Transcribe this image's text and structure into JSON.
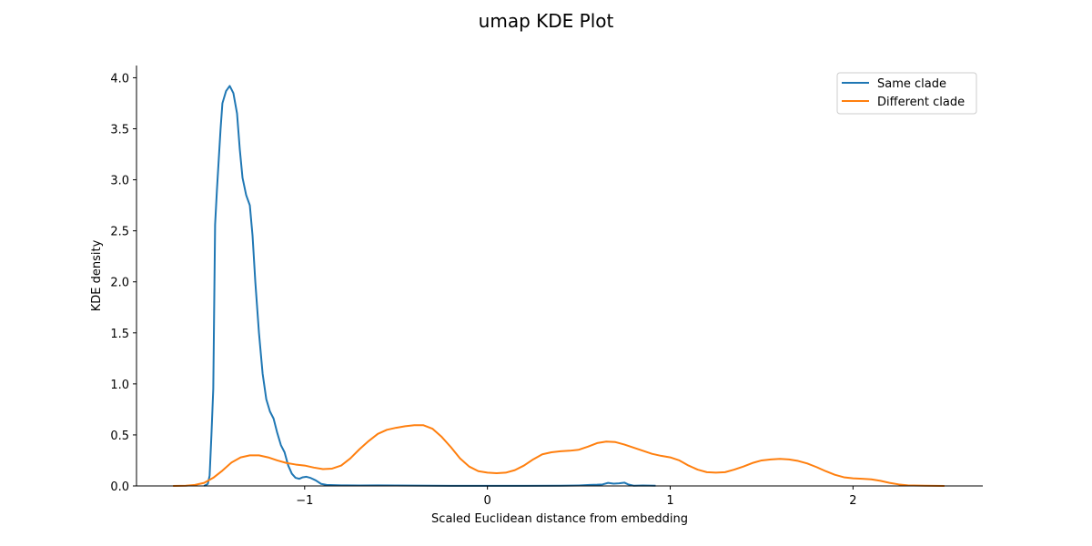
{
  "chart_data": {
    "type": "line",
    "title": "umap KDE Plot",
    "xlabel": "Scaled Euclidean distance from embedding",
    "ylabel": "KDE density",
    "xlim": [
      -1.92,
      2.71
    ],
    "ylim": [
      0,
      4.12
    ],
    "xticks": [
      {
        "value": -1,
        "label": "−1"
      },
      {
        "value": 0,
        "label": "0"
      },
      {
        "value": 1,
        "label": "1"
      },
      {
        "value": 2,
        "label": "2"
      }
    ],
    "yticks": [
      {
        "value": 0,
        "label": "0.0"
      },
      {
        "value": 0.5,
        "label": "0.5"
      },
      {
        "value": 1,
        "label": "1.0"
      },
      {
        "value": 1.5,
        "label": "1.5"
      },
      {
        "value": 2,
        "label": "2.0"
      },
      {
        "value": 2.5,
        "label": "2.5"
      },
      {
        "value": 3,
        "label": "3.0"
      },
      {
        "value": 3.5,
        "label": "3.5"
      },
      {
        "value": 4,
        "label": "4.0"
      }
    ],
    "grid": false,
    "legend_position": "top-right",
    "series": [
      {
        "name": "Same clade",
        "color": "#1f77b4",
        "points": [
          [
            -1.55,
            0
          ],
          [
            -1.53,
            0.02
          ],
          [
            -1.52,
            0.1
          ],
          [
            -1.51,
            0.5
          ],
          [
            -1.5,
            0.95
          ],
          [
            -1.49,
            2.56
          ],
          [
            -1.48,
            2.9
          ],
          [
            -1.47,
            3.2
          ],
          [
            -1.46,
            3.5
          ],
          [
            -1.45,
            3.75
          ],
          [
            -1.43,
            3.87
          ],
          [
            -1.41,
            3.92
          ],
          [
            -1.39,
            3.85
          ],
          [
            -1.37,
            3.65
          ],
          [
            -1.355,
            3.3
          ],
          [
            -1.34,
            3.02
          ],
          [
            -1.32,
            2.85
          ],
          [
            -1.3,
            2.75
          ],
          [
            -1.285,
            2.45
          ],
          [
            -1.27,
            2.0
          ],
          [
            -1.25,
            1.5
          ],
          [
            -1.23,
            1.1
          ],
          [
            -1.21,
            0.85
          ],
          [
            -1.19,
            0.73
          ],
          [
            -1.17,
            0.66
          ],
          [
            -1.15,
            0.52
          ],
          [
            -1.13,
            0.4
          ],
          [
            -1.11,
            0.33
          ],
          [
            -1.09,
            0.2
          ],
          [
            -1.07,
            0.12
          ],
          [
            -1.05,
            0.08
          ],
          [
            -1.03,
            0.07
          ],
          [
            -1.01,
            0.085
          ],
          [
            -0.99,
            0.09
          ],
          [
            -0.97,
            0.08
          ],
          [
            -0.94,
            0.055
          ],
          [
            -0.91,
            0.02
          ],
          [
            -0.88,
            0.01
          ],
          [
            -0.84,
            0.008
          ],
          [
            -0.8,
            0.006
          ],
          [
            -0.7,
            0.004
          ],
          [
            -0.6,
            0.006
          ],
          [
            -0.5,
            0.004
          ],
          [
            -0.4,
            0.003
          ],
          [
            -0.3,
            0.002
          ],
          [
            -0.2,
            0.001
          ],
          [
            0,
            0.001
          ],
          [
            0.2,
            0.001
          ],
          [
            0.4,
            0.002
          ],
          [
            0.5,
            0.004
          ],
          [
            0.56,
            0.01
          ],
          [
            0.6,
            0.012
          ],
          [
            0.63,
            0.015
          ],
          [
            0.66,
            0.03
          ],
          [
            0.69,
            0.022
          ],
          [
            0.72,
            0.026
          ],
          [
            0.75,
            0.032
          ],
          [
            0.77,
            0.015
          ],
          [
            0.8,
            0.002
          ],
          [
            0.85,
            0.004
          ],
          [
            0.92,
            0.002
          ]
        ]
      },
      {
        "name": "Different clade",
        "color": "#ff7f0e",
        "points": [
          [
            -1.72,
            0
          ],
          [
            -1.65,
            0.002
          ],
          [
            -1.6,
            0.01
          ],
          [
            -1.55,
            0.03
          ],
          [
            -1.5,
            0.08
          ],
          [
            -1.45,
            0.15
          ],
          [
            -1.4,
            0.23
          ],
          [
            -1.35,
            0.28
          ],
          [
            -1.3,
            0.3
          ],
          [
            -1.25,
            0.3
          ],
          [
            -1.2,
            0.28
          ],
          [
            -1.15,
            0.25
          ],
          [
            -1.1,
            0.225
          ],
          [
            -1.05,
            0.21
          ],
          [
            -1.0,
            0.2
          ],
          [
            -0.95,
            0.18
          ],
          [
            -0.9,
            0.165
          ],
          [
            -0.85,
            0.17
          ],
          [
            -0.8,
            0.2
          ],
          [
            -0.75,
            0.27
          ],
          [
            -0.7,
            0.36
          ],
          [
            -0.65,
            0.44
          ],
          [
            -0.6,
            0.51
          ],
          [
            -0.55,
            0.55
          ],
          [
            -0.5,
            0.57
          ],
          [
            -0.45,
            0.585
          ],
          [
            -0.4,
            0.595
          ],
          [
            -0.35,
            0.595
          ],
          [
            -0.3,
            0.56
          ],
          [
            -0.25,
            0.48
          ],
          [
            -0.2,
            0.38
          ],
          [
            -0.15,
            0.27
          ],
          [
            -0.1,
            0.19
          ],
          [
            -0.05,
            0.145
          ],
          [
            0.0,
            0.13
          ],
          [
            0.05,
            0.125
          ],
          [
            0.1,
            0.13
          ],
          [
            0.15,
            0.155
          ],
          [
            0.2,
            0.2
          ],
          [
            0.25,
            0.26
          ],
          [
            0.3,
            0.31
          ],
          [
            0.35,
            0.33
          ],
          [
            0.4,
            0.34
          ],
          [
            0.45,
            0.345
          ],
          [
            0.5,
            0.355
          ],
          [
            0.55,
            0.385
          ],
          [
            0.6,
            0.42
          ],
          [
            0.65,
            0.435
          ],
          [
            0.7,
            0.43
          ],
          [
            0.75,
            0.405
          ],
          [
            0.8,
            0.375
          ],
          [
            0.85,
            0.345
          ],
          [
            0.9,
            0.315
          ],
          [
            0.95,
            0.295
          ],
          [
            1.0,
            0.28
          ],
          [
            1.05,
            0.25
          ],
          [
            1.1,
            0.2
          ],
          [
            1.15,
            0.16
          ],
          [
            1.2,
            0.135
          ],
          [
            1.25,
            0.13
          ],
          [
            1.3,
            0.135
          ],
          [
            1.35,
            0.16
          ],
          [
            1.4,
            0.19
          ],
          [
            1.45,
            0.225
          ],
          [
            1.5,
            0.25
          ],
          [
            1.55,
            0.26
          ],
          [
            1.6,
            0.265
          ],
          [
            1.65,
            0.26
          ],
          [
            1.7,
            0.245
          ],
          [
            1.75,
            0.22
          ],
          [
            1.8,
            0.185
          ],
          [
            1.85,
            0.145
          ],
          [
            1.9,
            0.11
          ],
          [
            1.95,
            0.085
          ],
          [
            2.0,
            0.075
          ],
          [
            2.05,
            0.07
          ],
          [
            2.1,
            0.065
          ],
          [
            2.15,
            0.05
          ],
          [
            2.2,
            0.03
          ],
          [
            2.25,
            0.015
          ],
          [
            2.3,
            0.006
          ],
          [
            2.4,
            0.002
          ],
          [
            2.5,
            0
          ]
        ]
      }
    ]
  }
}
